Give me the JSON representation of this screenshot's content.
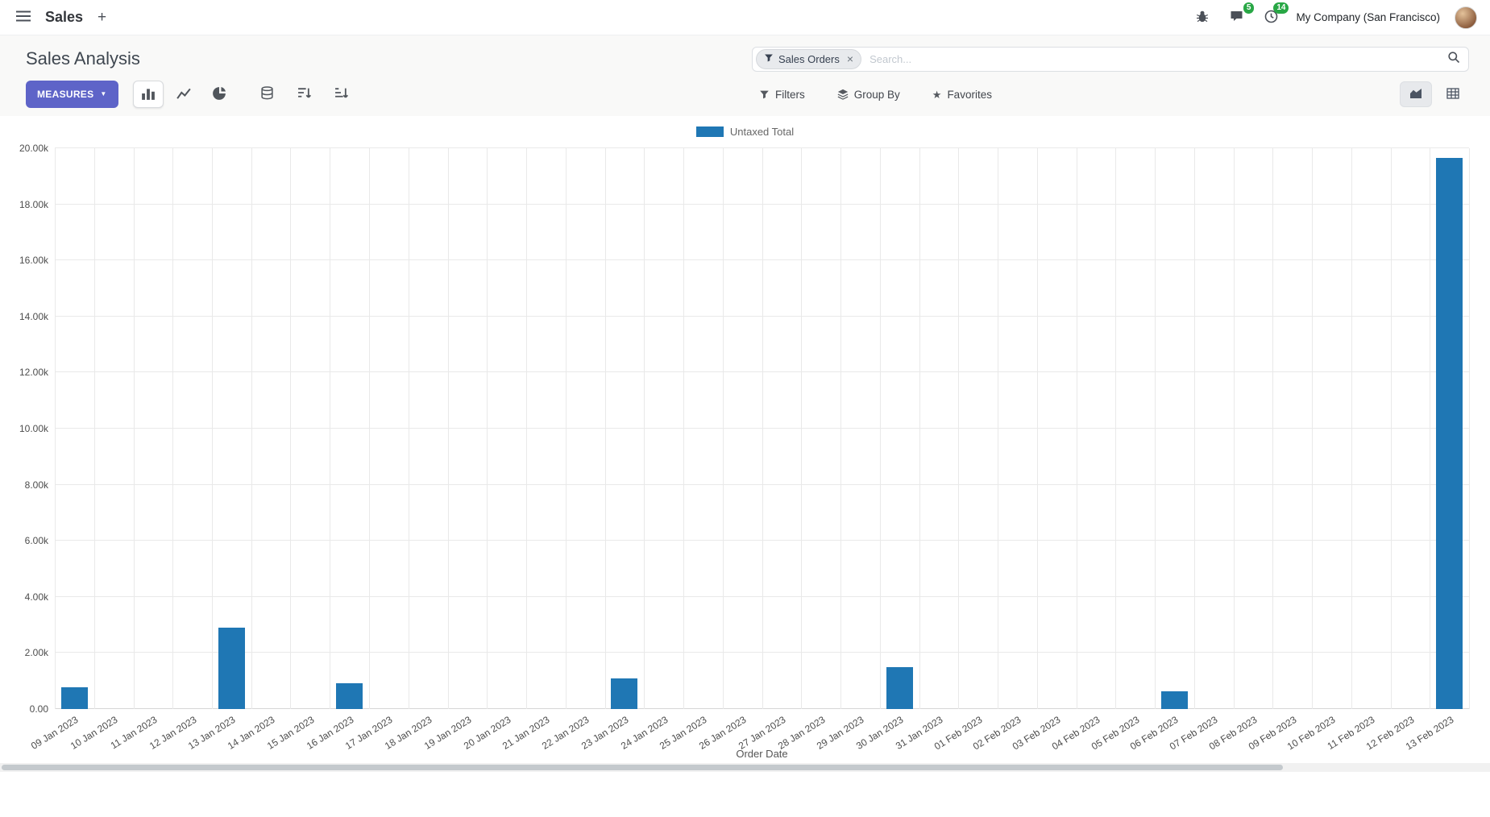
{
  "navbar": {
    "app_name": "Sales",
    "company": "My Company (San Francisco)",
    "chat_badge": "5",
    "activity_badge": "14"
  },
  "control_panel": {
    "title": "Sales Analysis",
    "measures_label": "MEASURES",
    "filters_label": "Filters",
    "group_by_label": "Group By",
    "favorites_label": "Favorites",
    "search": {
      "facet": "Sales Orders",
      "placeholder": "Search..."
    }
  },
  "icons": {
    "plus": "+",
    "caret_down": "▼",
    "star": "★",
    "close": "×"
  },
  "colors": {
    "primary_button": "#5e64c8",
    "badge": "#28a745",
    "bar": "#1f77b4",
    "panel_bg": "#f9f9f8"
  },
  "chart_data": {
    "type": "bar",
    "title": "",
    "xlabel": "Order Date",
    "ylabel": "",
    "ylim": [
      0,
      20000
    ],
    "grid": true,
    "legend_position": "top-center",
    "y_ticks": [
      "0.00",
      "2.00k",
      "4.00k",
      "6.00k",
      "8.00k",
      "10.00k",
      "12.00k",
      "14.00k",
      "16.00k",
      "18.00k",
      "20.00k"
    ],
    "categories": [
      "09 Jan 2023",
      "10 Jan 2023",
      "11 Jan 2023",
      "12 Jan 2023",
      "13 Jan 2023",
      "14 Jan 2023",
      "15 Jan 2023",
      "16 Jan 2023",
      "17 Jan 2023",
      "18 Jan 2023",
      "19 Jan 2023",
      "20 Jan 2023",
      "21 Jan 2023",
      "22 Jan 2023",
      "23 Jan 2023",
      "24 Jan 2023",
      "25 Jan 2023",
      "26 Jan 2023",
      "27 Jan 2023",
      "28 Jan 2023",
      "29 Jan 2023",
      "30 Jan 2023",
      "31 Jan 2023",
      "01 Feb 2023",
      "02 Feb 2023",
      "03 Feb 2023",
      "04 Feb 2023",
      "05 Feb 2023",
      "06 Feb 2023",
      "07 Feb 2023",
      "08 Feb 2023",
      "09 Feb 2023",
      "10 Feb 2023",
      "11 Feb 2023",
      "12 Feb 2023",
      "13 Feb 2023"
    ],
    "series": [
      {
        "name": "Untaxed Total",
        "color": "#1f77b4",
        "values": [
          780,
          0,
          0,
          0,
          2900,
          0,
          0,
          920,
          0,
          0,
          0,
          0,
          0,
          0,
          1080,
          0,
          0,
          0,
          0,
          0,
          0,
          1500,
          0,
          0,
          0,
          0,
          0,
          0,
          620,
          0,
          0,
          0,
          0,
          0,
          0,
          19650
        ]
      }
    ]
  }
}
